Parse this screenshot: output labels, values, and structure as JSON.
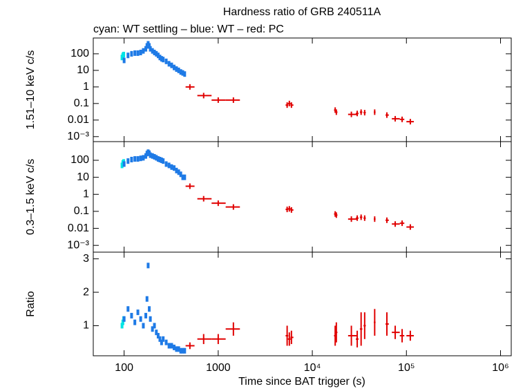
{
  "chart_data": [
    {
      "type": "scatter",
      "title": "Hardness ratio of GRB 240511A",
      "subtitle": "cyan: WT settling – blue: WT – red: PC",
      "ylabel": "1.51–10 keV c/s",
      "xlog": true,
      "ylog": true,
      "xlim": [
        47,
        1300000
      ],
      "ylim": [
        0.0005,
        900
      ],
      "xticks": [
        100,
        1000,
        {
          "value": 10000,
          "label": "10⁴"
        },
        {
          "value": 100000,
          "label": "10⁵"
        },
        {
          "value": 1000000,
          "label": "10⁶"
        }
      ],
      "yticks": [
        100,
        10,
        1,
        0.1,
        0.01,
        {
          "value": 0.001,
          "label": "10⁻³"
        }
      ],
      "series": [
        {
          "color": "#00e5e5",
          "x": [
            95,
            97,
            99
          ],
          "values": [
            60,
            80,
            90
          ]
        },
        {
          "color": "#1e7ae6",
          "x": [
            100,
            110,
            120,
            130,
            140,
            150,
            160,
            170,
            175,
            180,
            185,
            190,
            200,
            210,
            220,
            230,
            240,
            250,
            260,
            280,
            300,
            320,
            340,
            360,
            380,
            400,
            420,
            440
          ],
          "values": [
            40,
            80,
            100,
            110,
            110,
            120,
            150,
            200,
            300,
            400,
            300,
            200,
            150,
            120,
            100,
            80,
            60,
            50,
            45,
            35,
            25,
            20,
            15,
            12,
            10,
            8,
            7,
            6
          ]
        },
        {
          "color": "#e00000",
          "x": [
            500,
            700,
            1000,
            1450,
            5400,
            5700,
            6000,
            17500,
            18000,
            26000,
            30000,
            33000,
            36000,
            46000,
            62000,
            76000,
            90000,
            110000
          ],
          "xlo": [
            450,
            600,
            850,
            1200,
            5200,
            5500,
            5850,
            17000,
            17700,
            24000,
            29000,
            32000,
            35000,
            45000,
            60000,
            70000,
            85000,
            100000
          ],
          "xhi": [
            560,
            850,
            1200,
            1700,
            5550,
            5900,
            6300,
            17900,
            18500,
            30000,
            31000,
            34000,
            37000,
            47000,
            65000,
            85000,
            95000,
            120000
          ],
          "values": [
            1.0,
            0.3,
            0.16,
            0.16,
            0.08,
            0.1,
            0.08,
            0.04,
            0.03,
            0.022,
            0.025,
            0.03,
            0.028,
            0.03,
            0.02,
            0.012,
            0.011,
            0.008
          ]
        }
      ]
    },
    {
      "type": "scatter",
      "ylabel": "0.3–1.5 keV c/s",
      "xlog": true,
      "ylog": true,
      "xlim": [
        47,
        1300000
      ],
      "ylim": [
        0.0004,
        1250
      ],
      "xticks": [
        100,
        1000,
        {
          "value": 10000,
          "label": "10⁴"
        },
        {
          "value": 100000,
          "label": "10⁵"
        },
        {
          "value": 1000000,
          "label": "10⁶"
        }
      ],
      "yticks": [
        100,
        10,
        1,
        0.1,
        0.01,
        {
          "value": 0.001,
          "label": "10⁻³"
        }
      ],
      "series": [
        {
          "color": "#00e5e5",
          "x": [
            95,
            97,
            99
          ],
          "values": [
            50,
            70,
            80
          ]
        },
        {
          "color": "#1e7ae6",
          "x": [
            100,
            110,
            120,
            130,
            140,
            150,
            160,
            170,
            175,
            180,
            185,
            190,
            200,
            210,
            220,
            230,
            240,
            250,
            260,
            280,
            300,
            320,
            340,
            360,
            380,
            400,
            420,
            440
          ],
          "values": [
            60,
            90,
            110,
            120,
            120,
            130,
            140,
            180,
            250,
            300,
            260,
            200,
            180,
            160,
            140,
            120,
            110,
            100,
            90,
            60,
            50,
            40,
            35,
            25,
            20,
            15,
            10,
            10
          ]
        },
        {
          "color": "#e00000",
          "x": [
            500,
            700,
            1000,
            1450,
            5400,
            5700,
            6000,
            17500,
            18000,
            26000,
            30000,
            33000,
            36000,
            46000,
            62000,
            76000,
            90000,
            110000
          ],
          "xlo": [
            450,
            600,
            850,
            1200,
            5200,
            5500,
            5850,
            17000,
            17700,
            24000,
            29000,
            32000,
            35000,
            45000,
            60000,
            70000,
            85000,
            100000
          ],
          "xhi": [
            560,
            850,
            1200,
            1700,
            5550,
            5900,
            6300,
            17900,
            18500,
            30000,
            31000,
            34000,
            37000,
            47000,
            65000,
            85000,
            95000,
            120000
          ],
          "values": [
            3,
            0.55,
            0.3,
            0.18,
            0.13,
            0.14,
            0.12,
            0.07,
            0.06,
            0.035,
            0.04,
            0.045,
            0.04,
            0.035,
            0.03,
            0.018,
            0.02,
            0.012
          ]
        }
      ]
    },
    {
      "type": "scatter",
      "ylabel": "Ratio",
      "xlabel": "Time since BAT trigger (s)",
      "xlog": true,
      "ylog": false,
      "xlim": [
        47,
        1300000
      ],
      "ylim": [
        0.1,
        3.2
      ],
      "xticks": [
        100,
        1000,
        {
          "value": 10000,
          "label": "10⁴"
        },
        {
          "value": 100000,
          "label": "10⁵"
        },
        {
          "value": 1000000,
          "label": "10⁶"
        }
      ],
      "yticks": [
        1,
        2,
        3
      ],
      "series": [
        {
          "color": "#00e5e5",
          "x": [
            95,
            97,
            99
          ],
          "values": [
            1.0,
            1.1,
            1.2
          ]
        },
        {
          "color": "#1e7ae6",
          "x": [
            100,
            110,
            120,
            130,
            140,
            150,
            160,
            170,
            175,
            180,
            185,
            190,
            200,
            210,
            220,
            230,
            240,
            250,
            260,
            280,
            300,
            320,
            340,
            360,
            380,
            400,
            420,
            440
          ],
          "values": [
            1.2,
            1.5,
            1.3,
            1.1,
            1.4,
            1.2,
            1.0,
            1.3,
            1.8,
            2.8,
            1.5,
            1.2,
            0.9,
            1.0,
            0.8,
            0.7,
            0.6,
            0.5,
            0.6,
            0.5,
            0.4,
            0.4,
            0.35,
            0.3,
            0.3,
            0.25,
            0.25,
            0.25
          ]
        },
        {
          "color": "#e00000",
          "x": [
            500,
            700,
            1000,
            1450,
            5400,
            5700,
            6000,
            17500,
            18000,
            26000,
            30000,
            33000,
            36000,
            46000,
            62000,
            76000,
            90000,
            110000
          ],
          "xlo": [
            450,
            600,
            850,
            1200,
            5200,
            5500,
            5850,
            17000,
            17700,
            24000,
            29000,
            32000,
            35000,
            45000,
            60000,
            70000,
            85000,
            100000
          ],
          "xhi": [
            560,
            850,
            1200,
            1700,
            5550,
            5900,
            6300,
            17900,
            18500,
            30000,
            31000,
            34000,
            37000,
            47000,
            65000,
            85000,
            95000,
            120000
          ],
          "values": [
            0.4,
            0.6,
            0.6,
            0.9,
            0.7,
            0.6,
            0.65,
            0.7,
            0.8,
            0.7,
            0.6,
            0.9,
            1.0,
            1.1,
            1.05,
            0.8,
            0.7,
            0.7
          ],
          "yerr": [
            0.1,
            0.15,
            0.15,
            0.2,
            0.3,
            0.2,
            0.2,
            0.3,
            0.3,
            0.3,
            0.25,
            0.5,
            0.4,
            0.4,
            0.35,
            0.2,
            0.2,
            0.15
          ]
        }
      ]
    }
  ]
}
